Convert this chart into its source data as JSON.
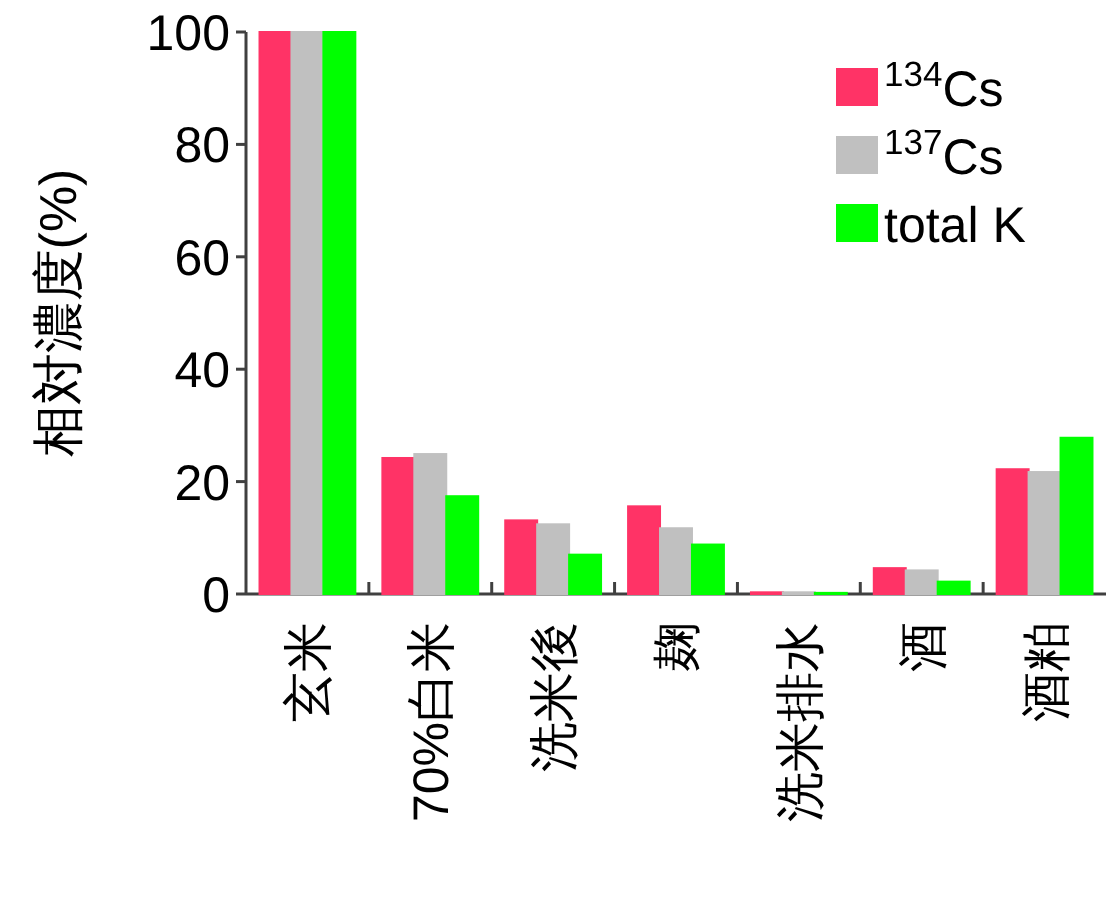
{
  "chart_data": {
    "type": "bar",
    "ylabel": "相対濃度(%)",
    "categories": [
      "玄米",
      "70%白米",
      "洗米後",
      "麹",
      "洗米排水",
      "酒",
      "酒粕"
    ],
    "series": [
      {
        "name": "$^{134}$Cs",
        "color": "#ff3366",
        "values": [
          100,
          24.2,
          13.1,
          15.6,
          0.3,
          4.6,
          22.2
        ]
      },
      {
        "name": "$^{137}$Cs",
        "color": "#c0c0c0",
        "values": [
          100,
          24.9,
          12.4,
          11.7,
          0.3,
          4.2,
          21.7
        ]
      },
      {
        "name": "total K",
        "color": "#00ff00",
        "values": [
          100,
          17.4,
          7.0,
          8.8,
          0.2,
          2.2,
          27.8
        ]
      }
    ],
    "ylim": [
      0,
      100
    ],
    "yticks": [
      0,
      20,
      40,
      60,
      80,
      100
    ],
    "grid": false,
    "legend": "top right"
  }
}
